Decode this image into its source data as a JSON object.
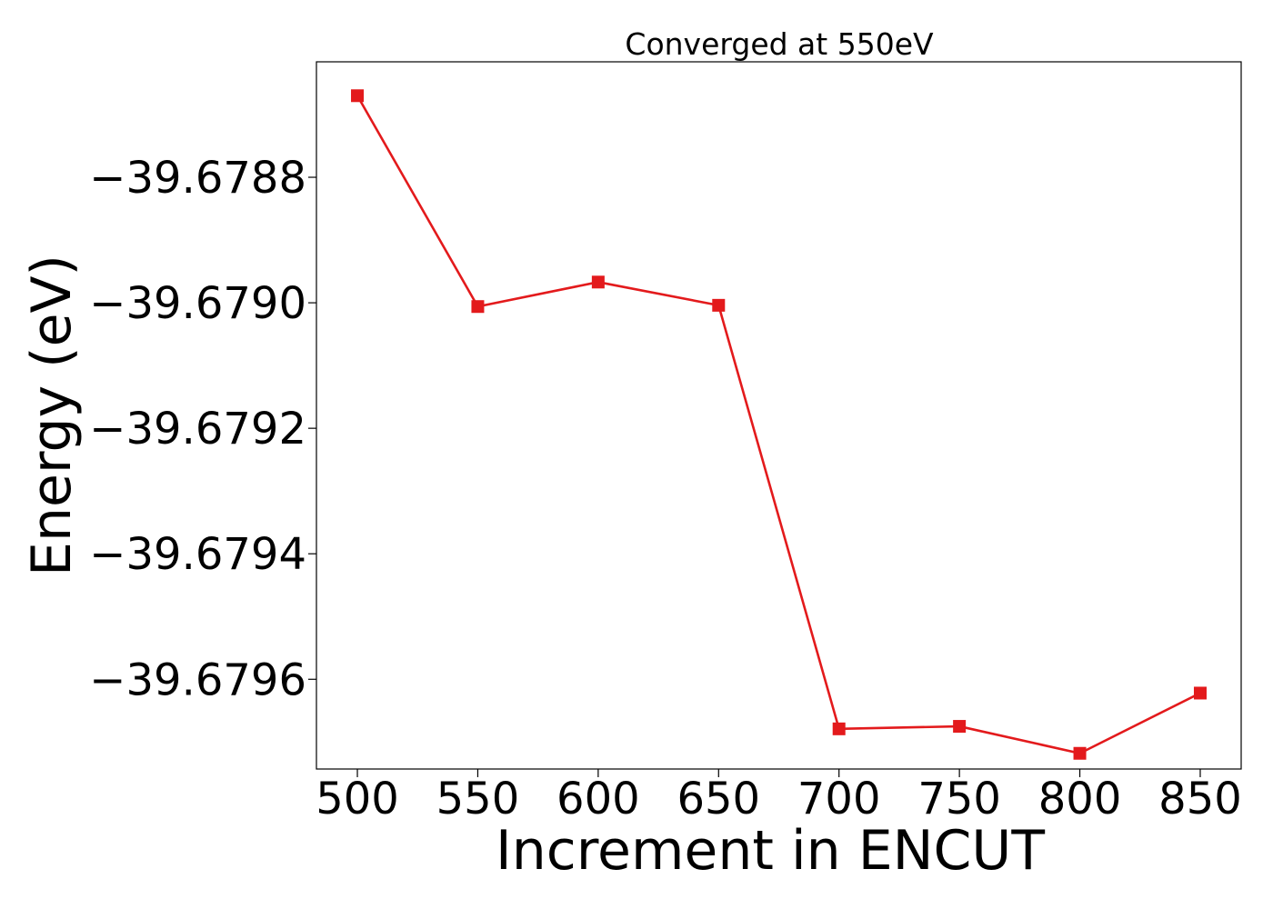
{
  "chart_data": {
    "type": "line",
    "title": "Converged at 550eV",
    "xlabel": "Increment in ENCUT",
    "ylabel": "Energy (eV)",
    "x": [
      500,
      550,
      600,
      650,
      700,
      750,
      800,
      850
    ],
    "series": [
      {
        "values": [
          -39.67867,
          -39.679006,
          -39.678967,
          -39.679004,
          -39.679679,
          -39.679675,
          -39.679718,
          -39.679622
        ],
        "color": "#e31a1c",
        "marker": "square"
      }
    ],
    "x_ticks": [
      500,
      550,
      600,
      650,
      700,
      750,
      800,
      850
    ],
    "x_tick_labels": [
      "500",
      "550",
      "600",
      "650",
      "700",
      "750",
      "800",
      "850"
    ],
    "y_ticks": [
      -39.6788,
      -39.679,
      -39.6792,
      -39.6794,
      -39.6796
    ],
    "y_tick_labels": [
      "−39.6788",
      "−39.6790",
      "−39.6792",
      "−39.6794",
      "−39.6796"
    ],
    "xlim": [
      483,
      867
    ],
    "ylim": [
      -39.679743,
      -39.678616
    ],
    "grid": false,
    "legend": "none"
  }
}
